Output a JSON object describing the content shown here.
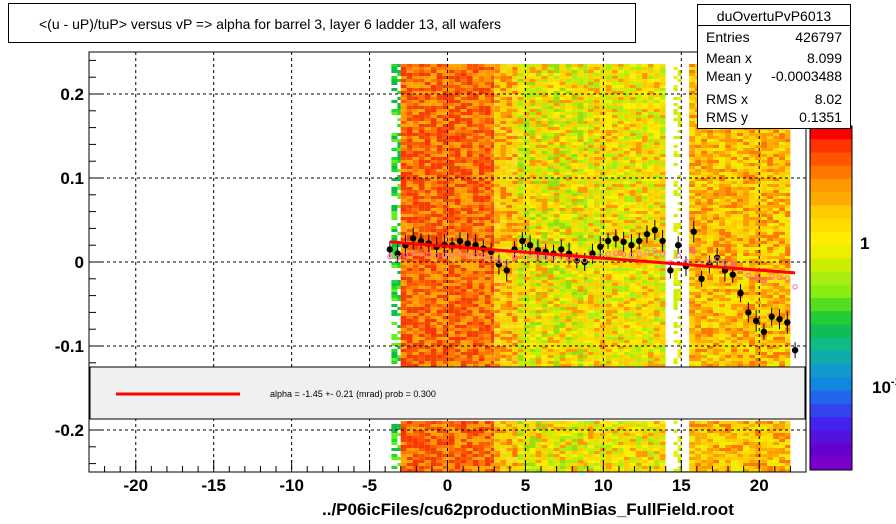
{
  "title": "<(u - uP)/tuP>  versus   vP =>  alpha for barrel 3, layer 6 ladder 13, all wafers",
  "stats": {
    "name": "duOvertuPvP6013",
    "rows": [
      {
        "label": "Entries",
        "value": "426797"
      },
      {
        "label": "Mean x",
        "value": "8.099"
      },
      {
        "label": "Mean y",
        "value": "-0.0003488"
      },
      {
        "label": "RMS x",
        "value": "8.02"
      },
      {
        "label": "RMS y",
        "value": "0.1351"
      }
    ]
  },
  "footer": "../P06icFiles/cu62productionMinBias_FullField.root",
  "legend": {
    "fit_label": "alpha =   -1.45 +-  0.21 (mrad) prob = 0.300",
    "fit_color": "#ff0000"
  },
  "palette": {
    "labels": [
      "1",
      "10"
    ],
    "label_superscript": "-1"
  },
  "colors": {
    "fit": "#ff0000",
    "points": "#000000",
    "profile_open": "#ff66cc"
  },
  "chart_data": {
    "type": "scatter",
    "title": "<(u - uP)/tuP>  versus   vP =>  alpha for barrel 3, layer 6 ladder 13, all wafers",
    "xlim": [
      -23,
      23
    ],
    "ylim": [
      -0.25,
      0.25
    ],
    "x_ticks": [
      "-20",
      "-15",
      "-10",
      "-5",
      "0",
      "5",
      "10",
      "15",
      "20"
    ],
    "y_ticks": [
      "0.2",
      "0.1",
      "0",
      "-0.1",
      "-0.2"
    ],
    "grid": true,
    "series": [
      {
        "points": [
          [
            -3.7,
            0.015
          ],
          [
            -3.2,
            0.01
          ],
          [
            -2.7,
            0.02
          ],
          [
            -2.2,
            0.028
          ],
          [
            -1.7,
            0.025
          ],
          [
            -1.2,
            0.022
          ],
          [
            -0.7,
            0.018
          ],
          [
            -0.2,
            0.02
          ],
          [
            0.3,
            0.02
          ],
          [
            0.8,
            0.025
          ],
          [
            1.3,
            0.022
          ],
          [
            1.8,
            0.02
          ],
          [
            2.3,
            0.016
          ],
          [
            2.8,
            0.012
          ],
          [
            3.3,
            -0.003
          ],
          [
            3.8,
            -0.01
          ],
          [
            4.3,
            0.015
          ],
          [
            4.8,
            0.025
          ],
          [
            5.3,
            0.02
          ],
          [
            5.8,
            0.014
          ],
          [
            6.3,
            0.012
          ],
          [
            6.8,
            0.01
          ],
          [
            7.3,
            0.015
          ],
          [
            7.8,
            0.01
          ],
          [
            8.3,
            0.002
          ],
          [
            8.8,
            0.0
          ],
          [
            9.3,
            0.01
          ],
          [
            9.8,
            0.018
          ],
          [
            10.3,
            0.025
          ],
          [
            10.8,
            0.028
          ],
          [
            11.3,
            0.024
          ],
          [
            11.8,
            0.02
          ],
          [
            12.3,
            0.025
          ],
          [
            12.8,
            0.033
          ],
          [
            13.3,
            0.038
          ],
          [
            13.8,
            0.025
          ],
          [
            14.3,
            -0.01
          ],
          [
            14.8,
            0.02
          ],
          [
            15.3,
            -0.005
          ],
          [
            15.8,
            0.036
          ],
          [
            16.3,
            -0.02
          ],
          [
            16.8,
            -0.003
          ],
          [
            17.3,
            0.005
          ],
          [
            17.8,
            -0.01
          ],
          [
            18.3,
            -0.015
          ],
          [
            18.8,
            -0.037
          ],
          [
            19.3,
            -0.06
          ],
          [
            19.8,
            -0.07
          ],
          [
            20.3,
            -0.083
          ],
          [
            20.8,
            -0.065
          ],
          [
            21.3,
            -0.068
          ],
          [
            21.8,
            -0.072
          ],
          [
            22.3,
            -0.105
          ]
        ]
      }
    ],
    "fit_line": {
      "x": [
        -3.7,
        22.3
      ],
      "y": [
        0.024,
        -0.013
      ]
    }
  }
}
